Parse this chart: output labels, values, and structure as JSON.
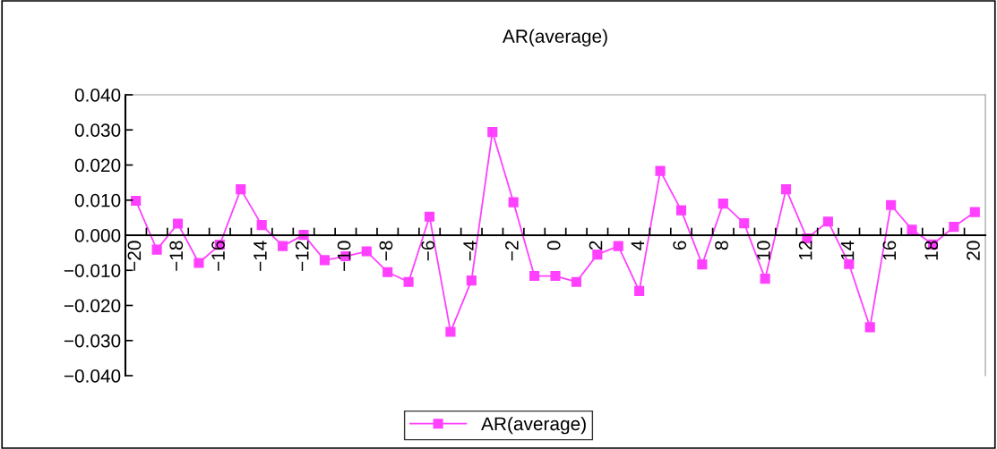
{
  "chart_data": {
    "type": "line",
    "title": "AR(average)",
    "categories": [
      "−20",
      null,
      "−18",
      null,
      "−16",
      null,
      "−14",
      null,
      "−12",
      null,
      "−10",
      null,
      "−8",
      null,
      "−6",
      null,
      "−4",
      null,
      "−2",
      null,
      "0",
      null,
      "2",
      null,
      "4",
      null,
      "6",
      null,
      "8",
      null,
      "10",
      null,
      "12",
      null,
      "14",
      null,
      "16",
      null,
      "18",
      null,
      "20"
    ],
    "series": [
      {
        "name": "AR(average)",
        "color": "#ff40ff",
        "values": [
          0.0098,
          -0.0041,
          0.0033,
          -0.0079,
          -0.0027,
          0.0131,
          0.0029,
          -0.0031,
          0.0001,
          -0.0071,
          -0.006,
          -0.0046,
          -0.0105,
          -0.0133,
          0.0053,
          -0.0275,
          -0.0129,
          0.0294,
          0.0094,
          -0.0116,
          -0.0116,
          -0.0133,
          -0.0055,
          -0.0031,
          -0.0159,
          0.0183,
          0.0071,
          -0.0083,
          0.009,
          0.0034,
          -0.0124,
          0.0131,
          -0.0009,
          0.0039,
          -0.0082,
          -0.0262,
          0.0086,
          0.0016,
          -0.0026,
          0.0024,
          0.0066
        ]
      }
    ],
    "ylim": [
      -0.04,
      0.04
    ],
    "yticks": [
      {
        "value": -0.04,
        "label": "−0.040"
      },
      {
        "value": -0.03,
        "label": "−0.030"
      },
      {
        "value": -0.02,
        "label": "−0.020"
      },
      {
        "value": -0.01,
        "label": "−0.010"
      },
      {
        "value": 0,
        "label": "0.000"
      },
      {
        "value": 0.01,
        "label": "0.010"
      },
      {
        "value": 0.02,
        "label": "0.020"
      },
      {
        "value": 0.03,
        "label": "0.030"
      },
      {
        "value": 0.04,
        "label": "0.040"
      }
    ],
    "marker": "square",
    "line_style": "solid",
    "legend": "bottom",
    "grid": false
  }
}
